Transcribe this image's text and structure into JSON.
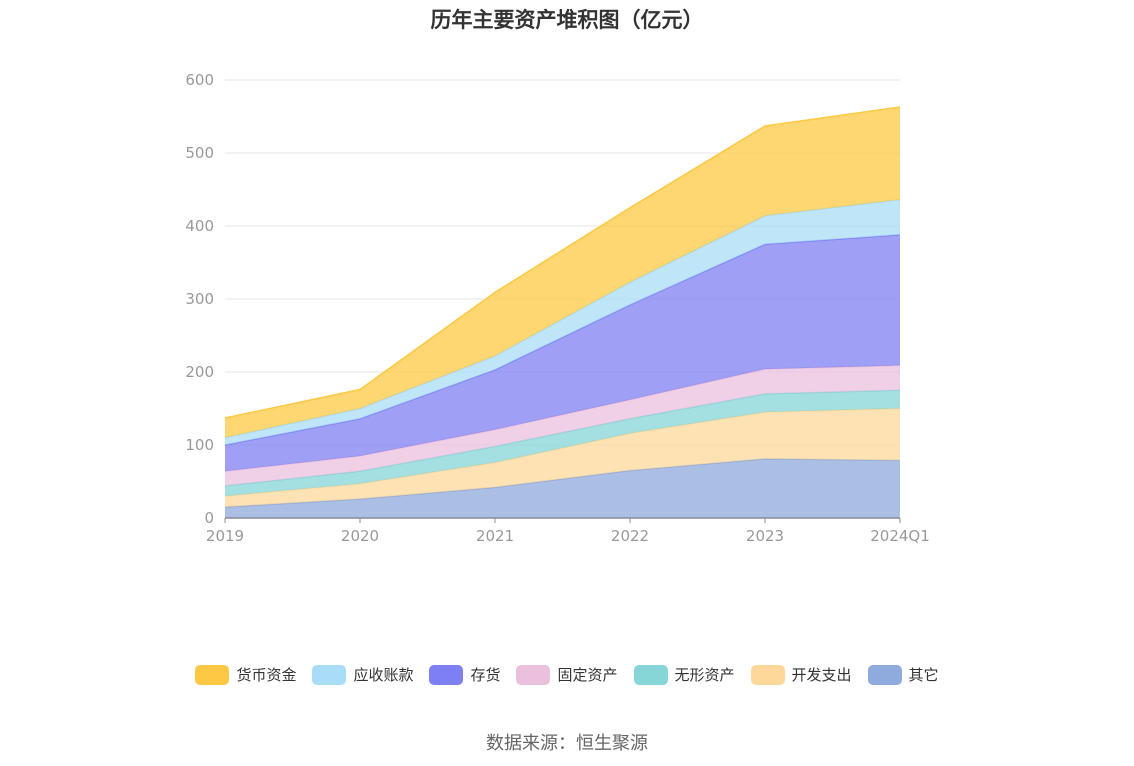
{
  "chart_data": {
    "type": "area",
    "title": "历年主要资产堆积图（亿元）",
    "stacked": true,
    "categories": [
      "2019",
      "2020",
      "2021",
      "2022",
      "2023",
      "2024Q1"
    ],
    "ylim": [
      0,
      600
    ],
    "yticks": [
      0,
      100,
      200,
      300,
      400,
      500,
      600
    ],
    "grid": true,
    "legend_position": "bottom",
    "series": [
      {
        "name": "其它",
        "color": "#8faadc",
        "values": [
          15,
          26,
          42,
          65,
          81,
          79
        ]
      },
      {
        "name": "开发支出",
        "color": "#fdd89a",
        "values": [
          15,
          21,
          34,
          51,
          64,
          71
        ]
      },
      {
        "name": "无形资产",
        "color": "#86d6d8",
        "values": [
          14,
          17,
          22,
          20,
          25,
          25
        ]
      },
      {
        "name": "固定资产",
        "color": "#eac0dd",
        "values": [
          20,
          21,
          23,
          26,
          34,
          34
        ]
      },
      {
        "name": "存货",
        "color": "#7d7ff2",
        "values": [
          36,
          51,
          82,
          130,
          171,
          179
        ]
      },
      {
        "name": "应收账款",
        "color": "#a9dcf7",
        "values": [
          10,
          14,
          19,
          31,
          39,
          48
        ]
      },
      {
        "name": "货币资金",
        "color": "#fdc843",
        "values": [
          27,
          26,
          87,
          102,
          123,
          127
        ]
      }
    ]
  },
  "legend": [
    {
      "label": "货币资金",
      "color": "#fdc843"
    },
    {
      "label": "应收账款",
      "color": "#a9dcf7"
    },
    {
      "label": "存货",
      "color": "#7d7ff2"
    },
    {
      "label": "固定资产",
      "color": "#eac0dd"
    },
    {
      "label": "无形资产",
      "color": "#86d6d8"
    },
    {
      "label": "开发支出",
      "color": "#fdd89a"
    },
    {
      "label": "其它",
      "color": "#8faadc"
    }
  ],
  "source": "数据来源：恒生聚源"
}
